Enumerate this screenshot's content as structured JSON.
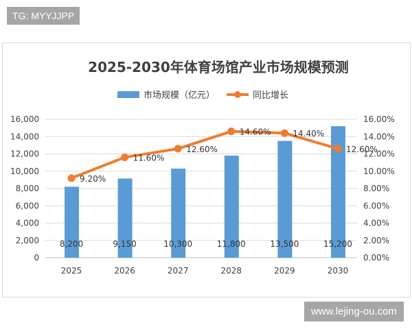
{
  "tag": "TG: MYYJJPP",
  "site": "www.lejing-ou.com",
  "chart_data": {
    "type": "bar+line",
    "title": "2025-2030年体育场馆产业市场规模预测",
    "categories": [
      "2025",
      "2026",
      "2027",
      "2028",
      "2029",
      "2030"
    ],
    "series": [
      {
        "name": "市场规模（亿元）",
        "type": "bar",
        "axis": "left",
        "color": "#5b9bd5",
        "values": [
          8200,
          9150,
          10300,
          11800,
          13500,
          15200
        ],
        "labels": [
          "8,200",
          "9,150",
          "10,300",
          "11,800",
          "13,500",
          "15,200"
        ]
      },
      {
        "name": "同比增长",
        "type": "line",
        "axis": "right",
        "color": "#ed7d31",
        "values": [
          9.2,
          11.6,
          12.6,
          14.6,
          14.4,
          12.6
        ],
        "labels": [
          "9.20%",
          "11.60%",
          "12.60%",
          "14.60%",
          "14.40%",
          "12.60%"
        ]
      }
    ],
    "left_axis": {
      "range": [
        0,
        16000
      ],
      "ticks": [
        "0",
        "2,000",
        "4,000",
        "6,000",
        "8,000",
        "10,000",
        "12,000",
        "14,000",
        "16,000"
      ]
    },
    "right_axis": {
      "range": [
        0,
        16
      ],
      "ticks": [
        "0.00%",
        "2.00%",
        "4.00%",
        "6.00%",
        "8.00%",
        "10.00%",
        "12.00%",
        "14.00%",
        "16.00%"
      ]
    },
    "grid": true,
    "legend": "top"
  }
}
